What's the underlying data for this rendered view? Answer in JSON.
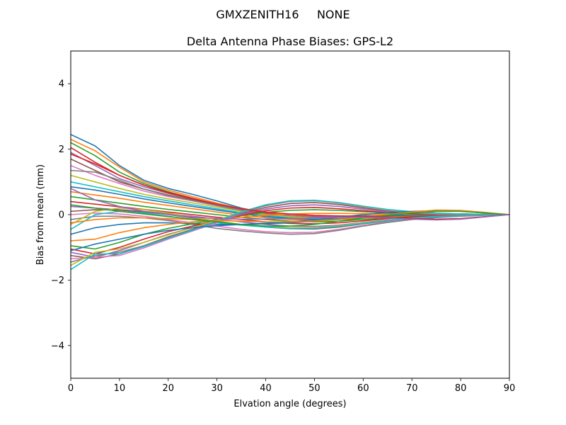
{
  "suptitle": "GMXZENITH16     NONE",
  "chart_data": {
    "type": "line",
    "title": "Delta Antenna Phase Biases: GPS-L2",
    "xlabel": "Elvation angle (degrees)",
    "ylabel": "Bias from mean (mm)",
    "xlim": [
      0,
      90
    ],
    "ylim": [
      -5,
      5
    ],
    "xticks": [
      0,
      10,
      20,
      30,
      40,
      50,
      60,
      70,
      80,
      90
    ],
    "yticks": [
      -4,
      -2,
      0,
      2,
      4
    ],
    "ytick_labels": [
      "−4",
      "−2",
      "0",
      "2",
      "4"
    ],
    "grid": false,
    "x": [
      0,
      5,
      10,
      15,
      20,
      25,
      30,
      35,
      40,
      45,
      50,
      55,
      60,
      65,
      70,
      75,
      80,
      85,
      90
    ],
    "colors": [
      "#1f77b4",
      "#ff7f0e",
      "#2ca02c",
      "#d62728",
      "#9467bd",
      "#8c564b",
      "#e377c2",
      "#7f7f7f",
      "#bcbd22",
      "#17becf"
    ],
    "series": [
      {
        "values": [
          2.45,
          2.1,
          1.5,
          1.05,
          0.8,
          0.62,
          0.42,
          0.2,
          0.05,
          -0.05,
          -0.08,
          -0.08,
          -0.05,
          -0.02,
          0.0,
          0.02,
          0.02,
          0.01,
          0.0
        ]
      },
      {
        "values": [
          2.3,
          1.95,
          1.45,
          1.0,
          0.75,
          0.55,
          0.35,
          0.18,
          0.05,
          -0.02,
          -0.05,
          -0.05,
          -0.03,
          -0.01,
          0.01,
          0.02,
          0.02,
          0.01,
          0.0
        ]
      },
      {
        "values": [
          2.2,
          1.8,
          1.3,
          0.95,
          0.7,
          0.5,
          0.3,
          0.15,
          0.02,
          -0.05,
          -0.08,
          -0.08,
          -0.05,
          -0.02,
          0.0,
          0.02,
          0.02,
          0.01,
          0.0
        ]
      },
      {
        "values": [
          2.05,
          1.6,
          1.2,
          0.9,
          0.68,
          0.5,
          0.32,
          0.16,
          0.04,
          -0.03,
          -0.06,
          -0.07,
          -0.05,
          -0.02,
          0.0,
          0.01,
          0.02,
          0.01,
          0.0
        ]
      },
      {
        "values": [
          1.9,
          1.5,
          1.1,
          0.85,
          0.65,
          0.48,
          0.3,
          0.14,
          0.02,
          -0.04,
          -0.07,
          -0.07,
          -0.05,
          -0.02,
          0.0,
          0.01,
          0.01,
          0.01,
          0.0
        ]
      },
      {
        "values": [
          1.7,
          1.35,
          1.0,
          0.78,
          0.6,
          0.45,
          0.28,
          0.12,
          0.0,
          -0.06,
          -0.09,
          -0.09,
          -0.06,
          -0.03,
          -0.01,
          0.01,
          0.01,
          0.01,
          0.0
        ]
      },
      {
        "values": [
          1.5,
          1.2,
          0.95,
          0.72,
          0.55,
          0.42,
          0.27,
          0.12,
          0.0,
          -0.06,
          -0.1,
          -0.1,
          -0.07,
          -0.04,
          -0.02,
          0.0,
          0.01,
          0.01,
          0.0
        ]
      },
      {
        "values": [
          1.35,
          1.3,
          1.05,
          0.78,
          0.58,
          0.43,
          0.28,
          0.12,
          0.0,
          -0.07,
          -0.11,
          -0.1,
          -0.07,
          -0.04,
          -0.02,
          0.0,
          0.01,
          0.01,
          0.0
        ]
      },
      {
        "values": [
          1.2,
          1.0,
          0.8,
          0.62,
          0.48,
          0.36,
          0.23,
          0.1,
          0.0,
          -0.06,
          -0.1,
          -0.1,
          -0.07,
          -0.04,
          -0.02,
          0.0,
          0.01,
          0.01,
          0.0
        ]
      },
      {
        "values": [
          1.0,
          0.85,
          0.7,
          0.55,
          0.42,
          0.3,
          0.18,
          0.06,
          -0.03,
          -0.1,
          -0.13,
          -0.12,
          -0.09,
          -0.05,
          -0.03,
          -0.01,
          0.0,
          0.0,
          0.0
        ]
      },
      {
        "values": [
          0.85,
          0.75,
          0.62,
          0.48,
          0.36,
          0.25,
          0.14,
          0.03,
          -0.06,
          -0.12,
          -0.15,
          -0.14,
          -0.1,
          -0.06,
          -0.03,
          -0.01,
          0.0,
          0.0,
          0.0
        ]
      },
      {
        "values": [
          0.7,
          0.6,
          0.5,
          0.38,
          0.28,
          0.18,
          0.08,
          -0.02,
          -0.1,
          -0.15,
          -0.17,
          -0.15,
          -0.11,
          -0.07,
          -0.04,
          -0.02,
          -0.01,
          0.0,
          0.0
        ]
      },
      {
        "values": [
          0.55,
          0.45,
          0.35,
          0.25,
          0.16,
          0.08,
          0.0,
          -0.08,
          -0.15,
          -0.2,
          -0.22,
          -0.2,
          -0.15,
          -0.1,
          -0.06,
          -0.03,
          -0.01,
          0.0,
          0.0
        ]
      },
      {
        "values": [
          0.4,
          0.32,
          0.24,
          0.16,
          0.08,
          0.0,
          -0.08,
          -0.15,
          -0.22,
          -0.27,
          -0.28,
          -0.25,
          -0.19,
          -0.12,
          -0.07,
          -0.04,
          -0.02,
          -0.01,
          0.0
        ]
      },
      {
        "values": [
          0.25,
          0.2,
          0.15,
          0.1,
          0.03,
          -0.05,
          -0.13,
          -0.22,
          -0.3,
          -0.35,
          -0.36,
          -0.32,
          -0.24,
          -0.16,
          -0.1,
          -0.05,
          -0.02,
          -0.01,
          0.0
        ]
      },
      {
        "values": [
          0.1,
          0.15,
          0.14,
          0.08,
          0.0,
          -0.1,
          -0.2,
          -0.3,
          -0.38,
          -0.43,
          -0.44,
          -0.38,
          -0.28,
          -0.19,
          -0.12,
          -0.06,
          -0.03,
          -0.01,
          0.0
        ]
      },
      {
        "values": [
          0.0,
          0.05,
          0.02,
          -0.05,
          -0.15,
          -0.25,
          -0.35,
          -0.45,
          -0.52,
          -0.55,
          -0.54,
          -0.45,
          -0.33,
          -0.22,
          -0.14,
          -0.08,
          -0.04,
          -0.02,
          0.0
        ]
      },
      {
        "values": [
          -0.15,
          -0.05,
          -0.05,
          -0.1,
          -0.18,
          -0.3,
          -0.42,
          -0.5,
          -0.56,
          -0.6,
          -0.58,
          -0.48,
          -0.35,
          -0.24,
          -0.15,
          -0.09,
          -0.05,
          -0.02,
          0.0
        ]
      },
      {
        "values": [
          -0.3,
          0.1,
          0.2,
          0.15,
          0.05,
          -0.08,
          -0.2,
          -0.3,
          -0.36,
          -0.4,
          -0.4,
          -0.34,
          -0.25,
          -0.17,
          -0.11,
          -0.06,
          -0.03,
          -0.01,
          0.0
        ]
      },
      {
        "values": [
          -0.45,
          0.0,
          0.1,
          0.05,
          -0.05,
          -0.15,
          -0.25,
          -0.32,
          -0.38,
          -0.42,
          -0.42,
          -0.36,
          -0.27,
          -0.18,
          -0.11,
          -0.06,
          -0.03,
          -0.01,
          0.0
        ]
      },
      {
        "values": [
          -0.6,
          -0.4,
          -0.3,
          -0.25,
          -0.25,
          -0.28,
          -0.3,
          -0.3,
          -0.28,
          -0.25,
          -0.2,
          -0.14,
          -0.08,
          -0.04,
          -0.02,
          -0.01,
          0.0,
          0.0,
          0.0
        ]
      },
      {
        "values": [
          -0.8,
          -0.75,
          -0.55,
          -0.4,
          -0.3,
          -0.22,
          -0.15,
          -0.08,
          -0.02,
          0.02,
          0.04,
          0.04,
          0.03,
          0.02,
          0.01,
          0.0,
          0.0,
          0.0,
          0.0
        ]
      },
      {
        "values": [
          -0.95,
          -1.05,
          -0.85,
          -0.6,
          -0.42,
          -0.28,
          -0.15,
          -0.03,
          0.07,
          0.13,
          0.15,
          0.13,
          0.09,
          0.05,
          0.02,
          0.01,
          0.0,
          0.0,
          0.0
        ]
      },
      {
        "values": [
          -1.05,
          -1.2,
          -1.0,
          -0.75,
          -0.52,
          -0.35,
          -0.18,
          -0.02,
          0.12,
          0.2,
          0.22,
          0.18,
          0.12,
          0.06,
          0.03,
          0.01,
          0.0,
          0.0,
          0.0
        ]
      },
      {
        "values": [
          -1.15,
          -1.3,
          -1.1,
          -0.85,
          -0.6,
          -0.4,
          -0.2,
          0.0,
          0.17,
          0.27,
          0.3,
          0.25,
          0.17,
          0.09,
          0.05,
          0.02,
          0.01,
          0.0,
          0.0
        ]
      },
      {
        "values": [
          -1.25,
          -1.35,
          -1.2,
          -0.95,
          -0.68,
          -0.45,
          -0.22,
          0.03,
          0.22,
          0.34,
          0.37,
          0.31,
          0.21,
          0.12,
          0.06,
          0.03,
          0.01,
          0.0,
          0.0
        ]
      },
      {
        "values": [
          -1.35,
          -1.3,
          -1.25,
          -1.02,
          -0.75,
          -0.5,
          -0.25,
          0.05,
          0.27,
          0.4,
          0.42,
          0.35,
          0.24,
          0.14,
          0.07,
          0.03,
          0.01,
          0.0,
          0.0
        ]
      },
      {
        "values": [
          -1.45,
          -1.25,
          -1.15,
          -0.95,
          -0.7,
          -0.47,
          -0.22,
          0.06,
          0.28,
          0.41,
          0.43,
          0.36,
          0.25,
          0.15,
          0.08,
          0.04,
          0.02,
          0.01,
          0.0
        ]
      },
      {
        "values": [
          -1.55,
          -1.15,
          -1.05,
          -0.85,
          -0.62,
          -0.4,
          -0.17,
          0.09,
          0.3,
          0.42,
          0.43,
          0.36,
          0.25,
          0.15,
          0.08,
          0.04,
          0.02,
          0.01,
          0.0
        ]
      },
      {
        "values": [
          -1.68,
          -1.2,
          -1.2,
          -0.98,
          -0.72,
          -0.48,
          -0.2,
          0.08,
          0.3,
          0.42,
          0.44,
          0.37,
          0.26,
          0.16,
          0.09,
          0.05,
          0.02,
          0.01,
          0.0
        ]
      },
      {
        "values": [
          -1.1,
          -0.9,
          -0.75,
          -0.6,
          -0.48,
          -0.4,
          -0.34,
          -0.3,
          -0.26,
          -0.22,
          -0.16,
          -0.08,
          0.0,
          0.06,
          0.1,
          0.12,
          0.1,
          0.05,
          0.0
        ]
      },
      {
        "values": [
          -0.25,
          -0.15,
          -0.1,
          -0.1,
          -0.12,
          -0.15,
          -0.18,
          -0.2,
          -0.22,
          -0.22,
          -0.2,
          -0.15,
          -0.08,
          0.0,
          0.08,
          0.14,
          0.13,
          0.07,
          0.0
        ]
      },
      {
        "values": [
          0.3,
          0.2,
          0.1,
          0.02,
          -0.06,
          -0.14,
          -0.22,
          -0.3,
          -0.35,
          -0.35,
          -0.3,
          -0.2,
          -0.1,
          -0.02,
          0.05,
          0.1,
          0.1,
          0.05,
          0.0
        ]
      },
      {
        "values": [
          1.85,
          1.55,
          1.2,
          0.9,
          0.66,
          0.48,
          0.32,
          0.18,
          0.08,
          0.02,
          -0.02,
          -0.04,
          -0.05,
          -0.08,
          -0.12,
          -0.14,
          -0.12,
          -0.06,
          0.0
        ]
      },
      {
        "values": [
          0.8,
          0.45,
          0.25,
          0.1,
          0.0,
          -0.08,
          -0.12,
          -0.14,
          -0.14,
          -0.12,
          -0.1,
          -0.08,
          -0.08,
          -0.1,
          -0.14,
          -0.16,
          -0.14,
          -0.07,
          0.0
        ]
      }
    ]
  }
}
